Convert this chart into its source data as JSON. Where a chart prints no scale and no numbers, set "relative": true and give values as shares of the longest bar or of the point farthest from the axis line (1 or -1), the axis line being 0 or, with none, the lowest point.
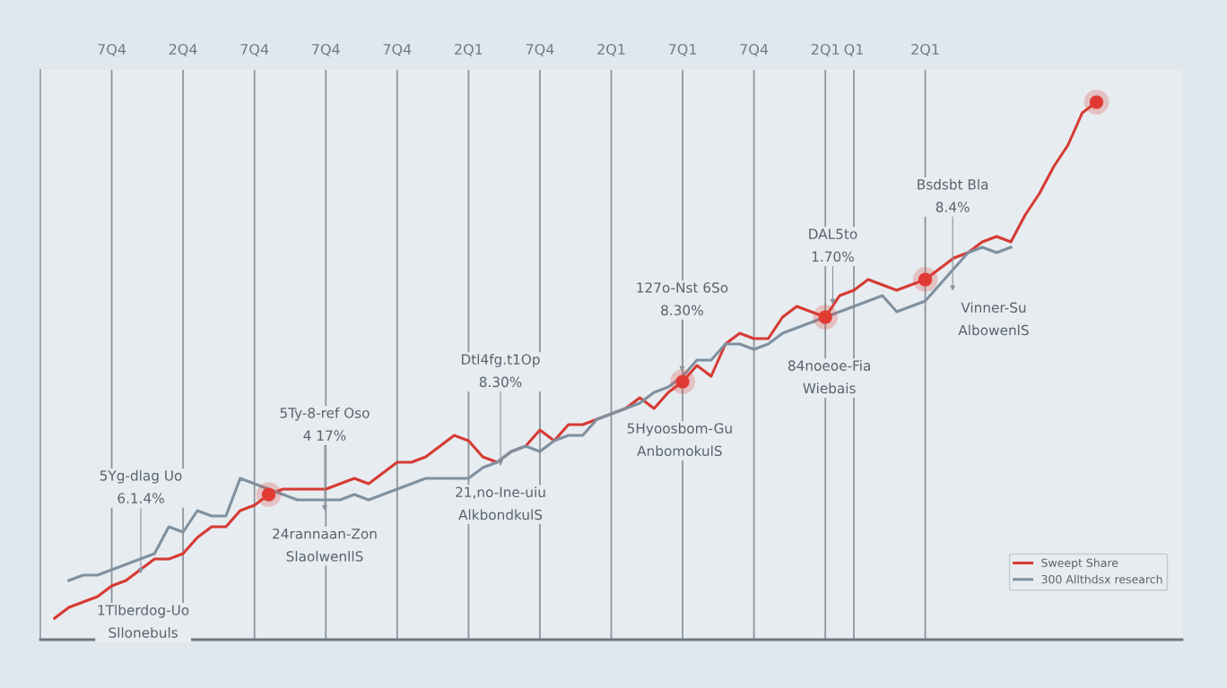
{
  "chart_data": {
    "type": "line",
    "relative": true,
    "grid": "x",
    "legend": "bottom right",
    "categories": [
      null,
      null,
      null,
      null,
      null,
      "7Q4",
      null,
      null,
      null,
      null,
      "2Q4",
      null,
      null,
      null,
      null,
      "7Q4",
      null,
      null,
      null,
      null,
      "7Q4",
      null,
      null,
      null,
      null,
      "7Q4",
      null,
      null,
      null,
      null,
      "2Q1",
      null,
      null,
      null,
      null,
      "7Q4",
      null,
      null,
      null,
      null,
      "2Q1",
      null,
      null,
      null,
      null,
      "7Q1",
      null,
      null,
      null,
      null,
      "7Q4",
      null,
      null,
      null,
      null,
      "2Q1",
      null,
      "Q1",
      null,
      null,
      null,
      null,
      "2Q1",
      null,
      null,
      null,
      null,
      null,
      null,
      null,
      null,
      null,
      null,
      null,
      null
    ],
    "series": [
      {
        "name": "Sweept Share",
        "color": "#d63a33",
        "values": [
          null,
          0.04,
          0.06,
          0.07,
          0.08,
          0.1,
          0.11,
          0.13,
          0.15,
          0.15,
          0.16,
          0.19,
          0.21,
          0.21,
          0.24,
          0.25,
          0.27,
          0.28,
          0.28,
          0.28,
          0.28,
          0.29,
          0.3,
          0.29,
          0.31,
          0.33,
          0.33,
          0.34,
          0.36,
          0.38,
          0.37,
          0.34,
          0.33,
          0.35,
          0.36,
          0.39,
          0.37,
          0.4,
          0.4,
          0.41,
          0.42,
          0.43,
          0.45,
          0.43,
          0.46,
          0.48,
          0.51,
          0.49,
          0.55,
          0.57,
          0.56,
          0.56,
          0.6,
          0.62,
          0.61,
          0.6,
          0.64,
          0.65,
          0.67,
          0.66,
          0.65,
          0.66,
          0.67,
          0.69,
          0.71,
          0.72,
          0.74,
          0.75,
          0.74,
          0.79,
          0.83,
          0.88,
          0.92,
          0.98,
          1.0
        ]
      },
      {
        "name": "300 Allthdsx research",
        "color": "#7f90a0",
        "values": [
          null,
          null,
          0.11,
          0.12,
          0.12,
          0.13,
          0.14,
          0.15,
          0.16,
          0.21,
          0.2,
          0.24,
          0.23,
          0.23,
          0.3,
          0.29,
          0.28,
          0.27,
          0.26,
          0.26,
          0.26,
          0.26,
          0.27,
          0.26,
          0.27,
          0.28,
          0.29,
          0.3,
          0.3,
          0.3,
          0.3,
          0.32,
          0.33,
          0.35,
          0.36,
          0.35,
          0.37,
          0.38,
          0.38,
          0.41,
          0.42,
          0.43,
          0.44,
          0.46,
          0.47,
          0.49,
          0.52,
          0.52,
          0.55,
          0.55,
          0.54,
          0.55,
          0.57,
          0.58,
          0.59,
          0.6,
          0.61,
          0.62,
          0.63,
          0.64,
          0.61,
          0.62,
          0.63,
          0.66,
          0.69,
          0.72,
          0.73,
          0.72,
          0.73,
          null,
          null,
          null,
          null,
          null,
          null
        ]
      },
      {
        "type": "scatter",
        "color": "#e03a33",
        "marker": "circle",
        "values": [
          null,
          null,
          null,
          null,
          null,
          null,
          null,
          null,
          null,
          null,
          null,
          null,
          null,
          null,
          null,
          null,
          0.27,
          null,
          null,
          null,
          null,
          null,
          null,
          null,
          null,
          null,
          null,
          null,
          null,
          null,
          null,
          null,
          null,
          null,
          null,
          null,
          null,
          null,
          null,
          null,
          null,
          null,
          null,
          null,
          null,
          0.48,
          null,
          null,
          null,
          null,
          null,
          null,
          null,
          null,
          null,
          0.6,
          null,
          null,
          null,
          null,
          null,
          null,
          0.67,
          null,
          null,
          null,
          null,
          null,
          null,
          null,
          null,
          null,
          null,
          null,
          1.0
        ]
      }
    ],
    "annotations": [
      "5Yg-dlag Uo\n6.1.4%",
      "1Tlberdog-Uo\nSllonebuls",
      "5Ty-8-ref Oso\n4 17%",
      "24rannaan-Zon\nSlaolwenllS",
      "Dtl4fg.t1Op\n8.30%",
      "21,no-Ine-uiu\nAlkbondkulS",
      "127o-Nst 6So\n8.30%",
      "5Hyoosbom-Gu\nAnbomokulS",
      "DAL5to\n1.70%",
      "84noeoe-Fia\nWiebais",
      "Bsdsbt Bla\n8.4%",
      "Vinner-Su\nAlbowenlS"
    ]
  }
}
